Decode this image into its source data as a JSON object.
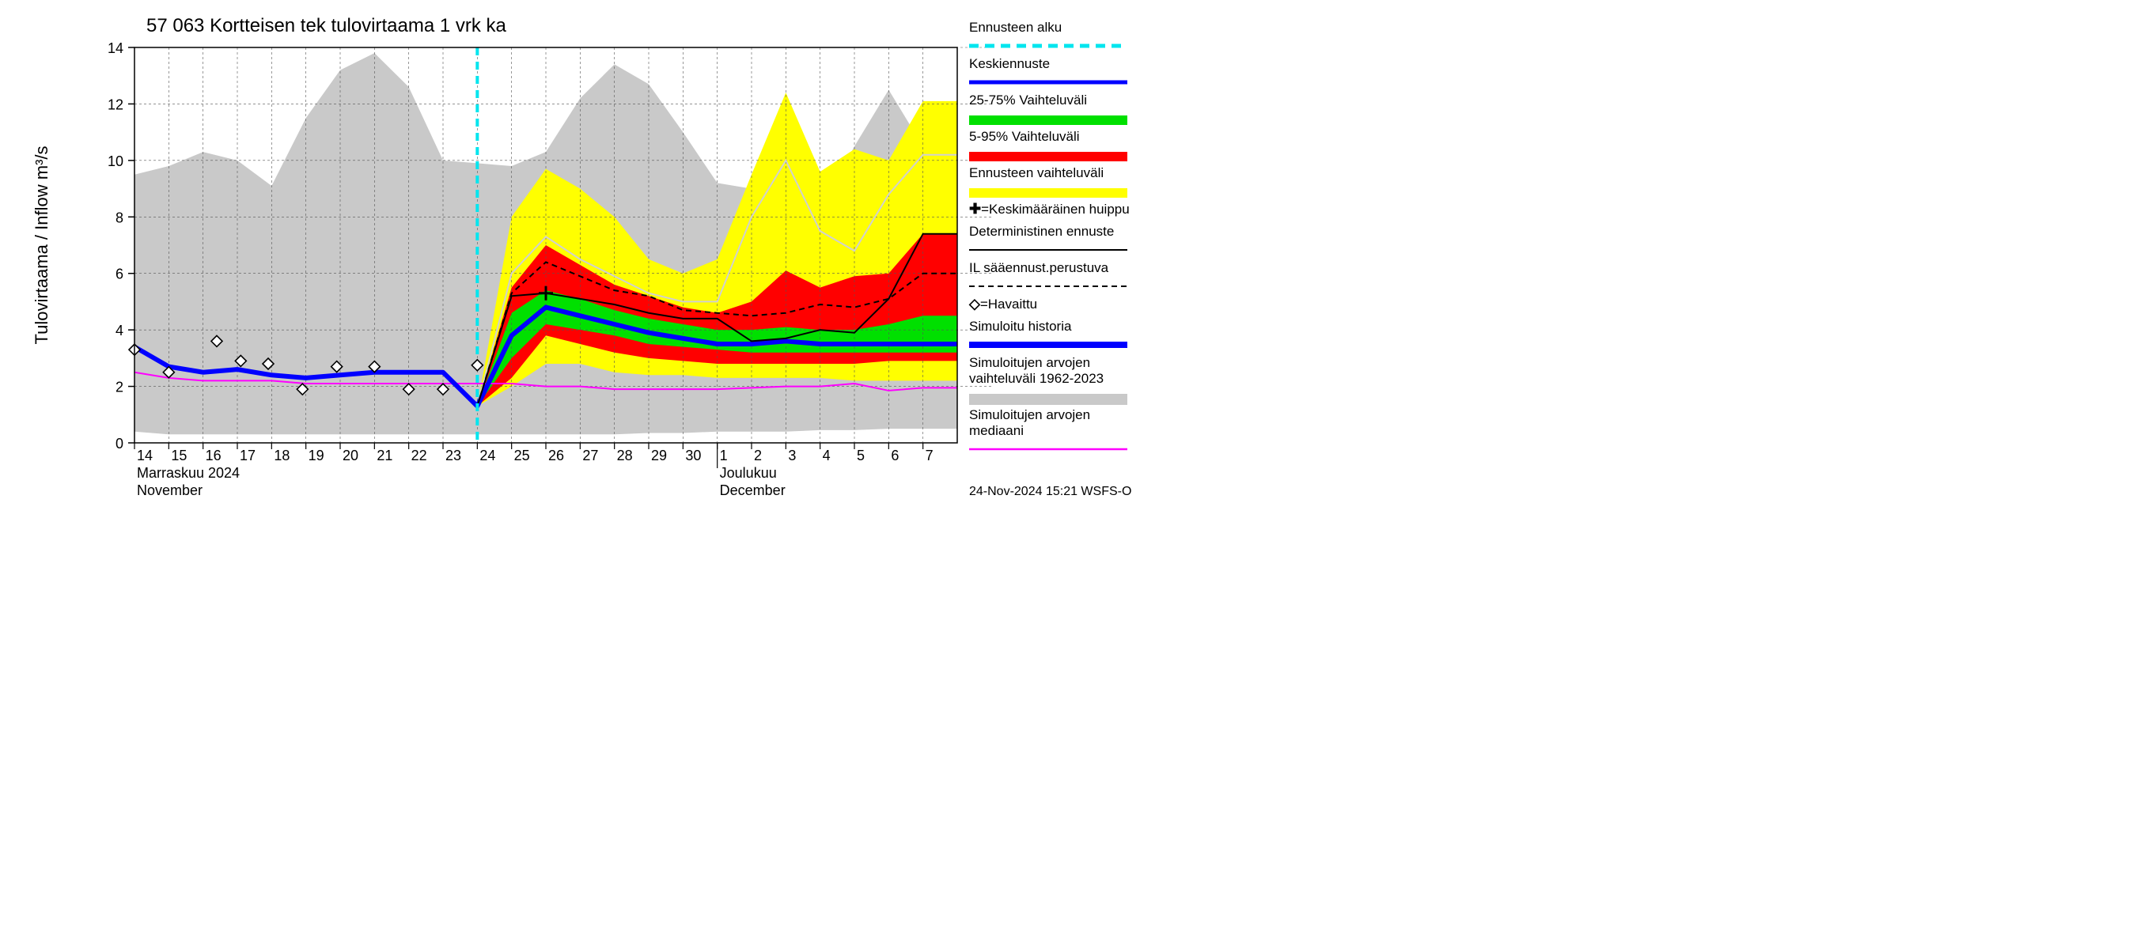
{
  "chart": {
    "type": "area+line",
    "title": "57 063 Kortteisen tek tulovirtaama 1 vrk ka",
    "title_fontsize": 24,
    "y_axis": {
      "label": "Tulovirtaama / Inflow   m³/s",
      "min": 0,
      "max": 14,
      "ticks": [
        0,
        2,
        4,
        6,
        8,
        10,
        12,
        14
      ],
      "label_fontsize": 22,
      "tick_fontsize": 18
    },
    "x_axis": {
      "days": [
        "14",
        "15",
        "16",
        "17",
        "18",
        "19",
        "20",
        "21",
        "22",
        "23",
        "24",
        "25",
        "26",
        "27",
        "28",
        "29",
        "30",
        "1",
        "2",
        "3",
        "4",
        "5",
        "6",
        "7"
      ],
      "month_labels": [
        {
          "line1": "Marraskuu 2024",
          "line2": "November",
          "at_index": 0
        },
        {
          "line1": "Joulukuu",
          "line2": "December",
          "at_index": 17
        }
      ],
      "tick_fontsize": 18
    },
    "forecast_start_index": 10,
    "colors": {
      "background": "#ffffff",
      "grid": "#555555",
      "axis": "#000000",
      "hist_band": "#c9c9c9",
      "yellow": "#ffff00",
      "red": "#ff0000",
      "green": "#00e000",
      "blue_thick": "#0000ff",
      "cyan": "#00e5ee",
      "magenta": "#ff00ff",
      "black": "#000000",
      "lightgray_line": "#d0d0d0"
    },
    "series": {
      "hist_high": [
        9.5,
        9.8,
        10.3,
        10.0,
        9.1,
        11.5,
        13.2,
        13.8,
        12.6,
        10.0,
        9.9,
        9.8,
        10.3,
        12.2,
        13.4,
        12.7,
        11.0,
        9.2,
        9.0,
        8.4,
        8.2,
        10.5,
        12.5,
        10.5
      ],
      "hist_low": [
        0.4,
        0.3,
        0.3,
        0.3,
        0.3,
        0.3,
        0.3,
        0.3,
        0.3,
        0.3,
        0.3,
        0.3,
        0.3,
        0.3,
        0.3,
        0.35,
        0.35,
        0.4,
        0.4,
        0.4,
        0.45,
        0.45,
        0.5,
        0.5
      ],
      "yellow_high": [
        null,
        null,
        null,
        null,
        null,
        null,
        null,
        null,
        null,
        null,
        1.3,
        8.0,
        9.7,
        9.0,
        8.0,
        6.5,
        6.0,
        6.5,
        9.5,
        12.4,
        9.6,
        10.4,
        10.0,
        12.1
      ],
      "yellow_low": [
        null,
        null,
        null,
        null,
        null,
        null,
        null,
        null,
        null,
        null,
        1.3,
        2.0,
        2.8,
        2.8,
        2.5,
        2.4,
        2.4,
        2.3,
        2.3,
        2.3,
        2.3,
        2.2,
        2.2,
        2.2
      ],
      "red_high": [
        null,
        null,
        null,
        null,
        null,
        null,
        null,
        null,
        null,
        null,
        1.3,
        5.5,
        7.0,
        6.3,
        5.6,
        5.2,
        4.8,
        4.6,
        5.0,
        6.1,
        5.5,
        5.9,
        6.0,
        7.4
      ],
      "red_low": [
        null,
        null,
        null,
        null,
        null,
        null,
        null,
        null,
        null,
        null,
        1.3,
        2.3,
        3.8,
        3.5,
        3.2,
        3.0,
        2.9,
        2.8,
        2.8,
        2.8,
        2.8,
        2.8,
        2.9,
        2.9
      ],
      "green_high": [
        null,
        null,
        null,
        null,
        null,
        null,
        null,
        null,
        null,
        null,
        1.3,
        4.6,
        5.4,
        5.1,
        4.7,
        4.4,
        4.2,
        4.0,
        4.0,
        4.1,
        4.0,
        4.0,
        4.2,
        4.5
      ],
      "green_low": [
        null,
        null,
        null,
        null,
        null,
        null,
        null,
        null,
        null,
        null,
        1.3,
        3.0,
        4.2,
        4.0,
        3.8,
        3.5,
        3.4,
        3.3,
        3.2,
        3.2,
        3.2,
        3.2,
        3.2,
        3.2
      ],
      "blue_line": [
        3.4,
        2.7,
        2.5,
        2.6,
        2.4,
        2.3,
        2.4,
        2.5,
        2.5,
        2.5,
        1.3,
        3.8,
        4.8,
        4.5,
        4.2,
        3.9,
        3.7,
        3.5,
        3.5,
        3.6,
        3.5,
        3.5,
        3.5,
        3.5
      ],
      "magenta": [
        2.5,
        2.3,
        2.2,
        2.2,
        2.2,
        2.1,
        2.1,
        2.1,
        2.1,
        2.1,
        2.1,
        2.1,
        2.0,
        2.0,
        1.9,
        1.9,
        1.9,
        1.9,
        1.95,
        2.0,
        2.0,
        2.1,
        1.85,
        1.95
      ],
      "det_black": [
        null,
        null,
        null,
        null,
        null,
        null,
        null,
        null,
        null,
        null,
        1.3,
        5.2,
        5.3,
        5.1,
        4.9,
        4.6,
        4.4,
        4.4,
        3.6,
        3.7,
        4.0,
        3.9,
        5.1,
        7.4
      ],
      "il_dashed": [
        null,
        null,
        null,
        null,
        null,
        null,
        null,
        null,
        null,
        null,
        1.3,
        5.3,
        6.4,
        5.9,
        5.4,
        5.2,
        4.7,
        4.6,
        4.5,
        4.6,
        4.9,
        4.8,
        5.1,
        6.0
      ],
      "lightgray": [
        null,
        null,
        null,
        null,
        null,
        null,
        null,
        null,
        null,
        null,
        1.3,
        6.0,
        7.3,
        6.5,
        5.9,
        5.3,
        5.0,
        5.0,
        8.0,
        10.0,
        7.5,
        6.8,
        8.8,
        10.2
      ],
      "obs_x": [
        0,
        1,
        2.4,
        3.1,
        3.9,
        4.9,
        5.9,
        7,
        8,
        9,
        10
      ],
      "obs_y": [
        3.3,
        2.5,
        3.6,
        2.9,
        2.8,
        1.9,
        2.7,
        2.7,
        1.9,
        1.9,
        2.75
      ],
      "peak_plus": {
        "x": 12,
        "y": 5.3
      }
    },
    "line_widths": {
      "blue": 6,
      "median": 2,
      "det": 2,
      "il": 2,
      "gray": 2,
      "cyan_dash": 4
    },
    "legend": [
      {
        "key": "forecast_start",
        "label": "Ennusteen alku",
        "swatch": "cyan-dash"
      },
      {
        "key": "median_forecast",
        "label": "Keskiennuste",
        "swatch": "blue-line"
      },
      {
        "key": "p25_75",
        "label": "25-75% Vaihteluväli",
        "swatch": "green-band"
      },
      {
        "key": "p5_95",
        "label": "5-95% Vaihteluväli",
        "swatch": "red-band"
      },
      {
        "key": "forecast_range",
        "label": "Ennusteen vaihteluväli",
        "swatch": "yellow-band"
      },
      {
        "key": "mean_peak",
        "label": "=Keskimääräinen huippu",
        "swatch": "plus"
      },
      {
        "key": "deterministic",
        "label": "Deterministinen ennuste",
        "swatch": "black-line"
      },
      {
        "key": "il_weather",
        "label": "IL sääennust.perustuva",
        "swatch": "black-dash"
      },
      {
        "key": "observed",
        "label": "=Havaittu",
        "swatch": "diamond"
      },
      {
        "key": "sim_history",
        "label": "Simuloitu historia",
        "swatch": "blue-thick"
      },
      {
        "key": "sim_range",
        "label": "Simuloitujen arvojen vaihteluväli 1962-2023",
        "swatch": "gray-band"
      },
      {
        "key": "sim_median",
        "label": "Simuloitujen arvojen mediaani",
        "swatch": "magenta-line"
      }
    ],
    "footer": "24-Nov-2024 15:21 WSFS-O"
  }
}
